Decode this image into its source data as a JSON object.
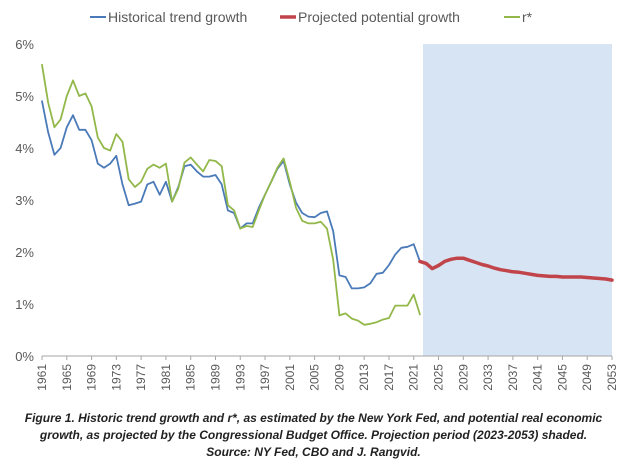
{
  "chart_data": {
    "type": "line",
    "legend_position": "top",
    "grid": false,
    "y_format": "percent",
    "ylim": [
      0,
      6
    ],
    "y_ticks": [
      0,
      1,
      2,
      3,
      4,
      5,
      6
    ],
    "y_tick_labels": [
      "0%",
      "1%",
      "2%",
      "3%",
      "4%",
      "5%",
      "6%"
    ],
    "xlim": [
      1961,
      2053
    ],
    "x_ticks": [
      1961,
      1965,
      1969,
      1973,
      1977,
      1981,
      1985,
      1989,
      1993,
      1997,
      2001,
      2005,
      2009,
      2013,
      2017,
      2021,
      2025,
      2029,
      2033,
      2037,
      2041,
      2045,
      2049,
      2053
    ],
    "projection_shaded_range": [
      2022.5,
      2053
    ],
    "colors": {
      "historical": "#4a7ab8",
      "projected": "#c0444a",
      "rstar": "#92b84a",
      "shade": "#d7e4f3",
      "axis": "#a6a6a6",
      "text": "#595959"
    },
    "series": [
      {
        "name": "Historical trend growth",
        "key": "historical",
        "x": [
          1961,
          1962,
          1963,
          1964,
          1965,
          1966,
          1967,
          1968,
          1969,
          1970,
          1971,
          1972,
          1973,
          1974,
          1975,
          1976,
          1977,
          1978,
          1979,
          1980,
          1981,
          1982,
          1983,
          1984,
          1985,
          1986,
          1987,
          1988,
          1989,
          1990,
          1991,
          1992,
          1993,
          1994,
          1995,
          1996,
          1997,
          1998,
          1999,
          2000,
          2001,
          2002,
          2003,
          2004,
          2005,
          2006,
          2007,
          2008,
          2009,
          2010,
          2011,
          2012,
          2013,
          2014,
          2015,
          2016,
          2017,
          2018,
          2019,
          2020,
          2021,
          2022
        ],
        "values": [
          4.9,
          4.3,
          3.87,
          4.0,
          4.4,
          4.63,
          4.35,
          4.35,
          4.15,
          3.7,
          3.62,
          3.7,
          3.85,
          3.3,
          2.9,
          2.93,
          2.97,
          3.3,
          3.35,
          3.1,
          3.35,
          2.97,
          3.25,
          3.65,
          3.68,
          3.55,
          3.45,
          3.45,
          3.48,
          3.3,
          2.8,
          2.75,
          2.45,
          2.55,
          2.55,
          2.85,
          3.1,
          3.35,
          3.6,
          3.75,
          3.3,
          2.95,
          2.75,
          2.68,
          2.67,
          2.75,
          2.78,
          2.4,
          1.55,
          1.52,
          1.3,
          1.3,
          1.32,
          1.4,
          1.58,
          1.6,
          1.75,
          1.95,
          2.08,
          2.1,
          2.15,
          1.82
        ]
      },
      {
        "name": "Projected potential growth",
        "key": "projected",
        "x": [
          2022,
          2023,
          2024,
          2025,
          2026,
          2027,
          2028,
          2029,
          2030,
          2031,
          2032,
          2033,
          2034,
          2035,
          2036,
          2037,
          2038,
          2039,
          2040,
          2041,
          2042,
          2043,
          2044,
          2045,
          2046,
          2047,
          2048,
          2049,
          2050,
          2051,
          2052,
          2053
        ],
        "values": [
          1.82,
          1.78,
          1.68,
          1.74,
          1.82,
          1.86,
          1.88,
          1.88,
          1.84,
          1.8,
          1.76,
          1.73,
          1.69,
          1.66,
          1.64,
          1.62,
          1.61,
          1.59,
          1.57,
          1.55,
          1.54,
          1.53,
          1.53,
          1.52,
          1.52,
          1.52,
          1.52,
          1.51,
          1.5,
          1.49,
          1.48,
          1.46
        ]
      },
      {
        "name": "r*",
        "key": "rstar",
        "x": [
          1961,
          1962,
          1963,
          1964,
          1965,
          1966,
          1967,
          1968,
          1969,
          1970,
          1971,
          1972,
          1973,
          1974,
          1975,
          1976,
          1977,
          1978,
          1979,
          1980,
          1981,
          1982,
          1983,
          1984,
          1985,
          1986,
          1987,
          1988,
          1989,
          1990,
          1991,
          1992,
          1993,
          1994,
          1995,
          1996,
          1997,
          1998,
          1999,
          2000,
          2001,
          2002,
          2003,
          2004,
          2005,
          2006,
          2007,
          2008,
          2009,
          2010,
          2011,
          2012,
          2013,
          2014,
          2015,
          2016,
          2017,
          2018,
          2019,
          2020,
          2021,
          2022
        ],
        "values": [
          5.6,
          4.87,
          4.4,
          4.55,
          5.0,
          5.3,
          5.0,
          5.05,
          4.8,
          4.2,
          4.0,
          3.95,
          4.27,
          4.12,
          3.4,
          3.25,
          3.35,
          3.6,
          3.68,
          3.62,
          3.7,
          2.97,
          3.22,
          3.72,
          3.82,
          3.68,
          3.55,
          3.77,
          3.75,
          3.65,
          2.9,
          2.8,
          2.45,
          2.5,
          2.48,
          2.8,
          3.1,
          3.35,
          3.62,
          3.8,
          3.35,
          2.85,
          2.6,
          2.55,
          2.55,
          2.58,
          2.45,
          1.85,
          0.78,
          0.82,
          0.72,
          0.68,
          0.6,
          0.62,
          0.65,
          0.7,
          0.73,
          0.97,
          0.97,
          0.97,
          1.18,
          0.8
        ]
      }
    ]
  },
  "caption": {
    "line1": "Figure 1. Historic trend growth and r*, as estimated by the New York Fed, and potential real economic",
    "line2": "growth, as projected by the Congressional Budget Office. Projection period (2023-2053) shaded.",
    "line3": "Source: NY Fed, CBO and J. Rangvid."
  }
}
